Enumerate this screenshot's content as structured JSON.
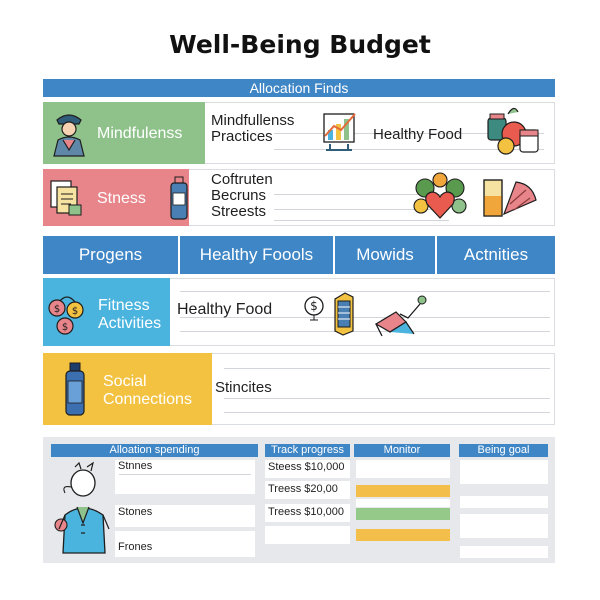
{
  "title": "Well-Being Budget",
  "allocation_bar": "Allocation Finds",
  "rows": {
    "mindfulness": {
      "category": "Mindfulenss",
      "text": [
        "Mindfullenss",
        "Practices"
      ],
      "side_label": "Healthy Food"
    },
    "stress": {
      "category": "Stness",
      "text": [
        "Coftruten",
        "Becruns",
        "Streests"
      ]
    },
    "fitness": {
      "category": [
        "Fitness",
        "Activities"
      ],
      "text": "Healthy Food"
    },
    "social": {
      "category": [
        "Social",
        "Connections"
      ],
      "text": "Stincites"
    }
  },
  "tabs": [
    "Progens",
    "Healthy Foools",
    "Mowids",
    "Actnities"
  ],
  "bottom": {
    "headers": [
      "Alloation spending",
      "Track progress",
      "Monitor",
      "Being goal"
    ],
    "spending": [
      "Stnnes",
      "Stones",
      "Frones"
    ],
    "progress": [
      "Steess $10,000",
      "Treess $20,00",
      "Treess $10,000"
    ]
  },
  "colors": {
    "accent_blue": "#3f86c6",
    "mindfulness_green": "#8fc28b",
    "stress_pink": "#e7858a",
    "fitness_blue": "#4bb4de",
    "social_yellow": "#f3c241"
  },
  "icons": [
    "meditation-person-icon",
    "growth-chart-icon",
    "fruit-jar-icon",
    "documents-icon",
    "bottle-icon",
    "heart-vegetables-icon",
    "juice-icon",
    "coins-icon",
    "dollar-coin-icon",
    "phone-icon",
    "exercise-person-icon",
    "water-bottle-icon",
    "person-illustration-icon"
  ]
}
